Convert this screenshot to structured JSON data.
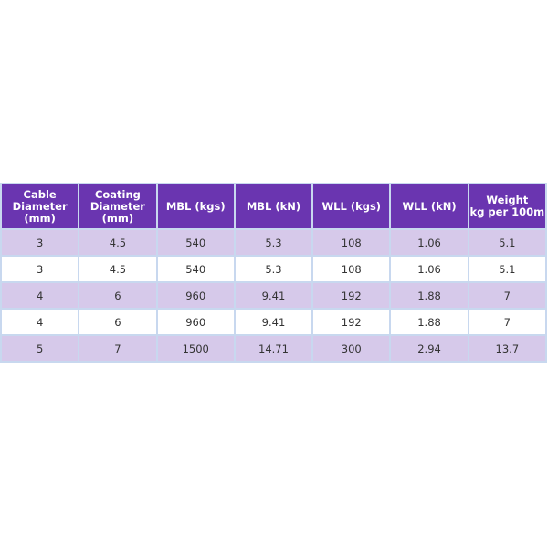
{
  "table": {
    "headers": [
      [
        "Cable",
        "Diameter",
        "(mm)"
      ],
      [
        "Coating",
        "Diameter",
        "(mm)"
      ],
      [
        "MBL (kgs)"
      ],
      [
        "MBL (kN)"
      ],
      [
        "WLL (kgs)"
      ],
      [
        "WLL (kN)"
      ],
      [
        "Weight",
        "kg per 100m"
      ]
    ],
    "rows": [
      [
        "3",
        "4.5",
        "540",
        "5.3",
        "108",
        "1.06",
        "5.1"
      ],
      [
        "3",
        "4.5",
        "540",
        "5.3",
        "108",
        "1.06",
        "5.1"
      ],
      [
        "4",
        "6",
        "960",
        "9.41",
        "192",
        "1.88",
        "7"
      ],
      [
        "4",
        "6",
        "960",
        "9.41",
        "192",
        "1.88",
        "7"
      ],
      [
        "5",
        "7",
        "1500",
        "14.71",
        "300",
        "2.94",
        "13.7"
      ]
    ]
  },
  "colors": {
    "header": "#6a35b0",
    "shaded_row": "#d6c9ea",
    "border": "#c8d8ef"
  }
}
